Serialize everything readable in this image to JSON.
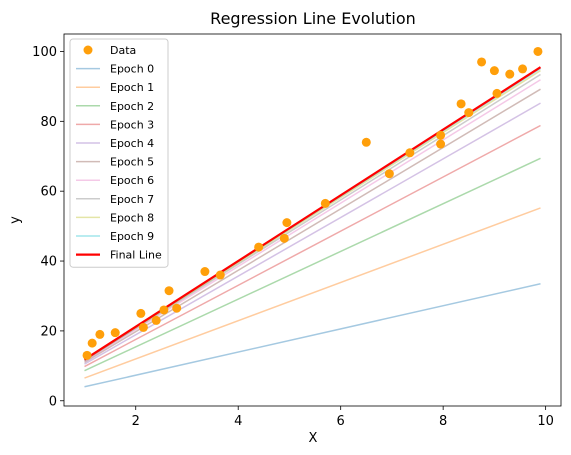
{
  "chart_data": {
    "type": "line",
    "title": "Regression Line Evolution",
    "xlabel": "X",
    "ylabel": "y",
    "xlim": [
      0.6,
      10.3
    ],
    "ylim": [
      -1.5,
      105
    ],
    "xticks": [
      2,
      4,
      6,
      8,
      10
    ],
    "yticks": [
      0,
      20,
      40,
      60,
      80,
      100
    ],
    "legend_location": "upper-left",
    "scatter": {
      "name": "Data",
      "color": "#ff9f0a",
      "x": [
        1.05,
        1.15,
        1.3,
        1.6,
        2.1,
        2.15,
        2.4,
        2.55,
        2.65,
        2.8,
        3.35,
        3.65,
        4.4,
        4.9,
        4.95,
        5.7,
        6.5,
        6.95,
        7.35,
        7.95,
        7.95,
        8.35,
        8.5,
        8.75,
        9.0,
        9.05,
        9.3,
        9.55,
        9.85
      ],
      "y": [
        13,
        16.5,
        19,
        19.5,
        25,
        21,
        23,
        26,
        31.5,
        26.5,
        37,
        36,
        44,
        46.5,
        51,
        56.5,
        74,
        65,
        71,
        76,
        73.5,
        85,
        82.5,
        97,
        94.5,
        88,
        93.5,
        95,
        100
      ]
    },
    "series": [
      {
        "name": "Epoch 0",
        "color": "#1f77b4",
        "x": [
          1.0,
          9.9
        ],
        "y": [
          4.0,
          33.5
        ]
      },
      {
        "name": "Epoch 1",
        "color": "#ff7f0e",
        "x": [
          1.0,
          9.9
        ],
        "y": [
          6.5,
          55.2
        ]
      },
      {
        "name": "Epoch 2",
        "color": "#2ca02c",
        "x": [
          1.0,
          9.9
        ],
        "y": [
          8.6,
          69.4
        ]
      },
      {
        "name": "Epoch 3",
        "color": "#d62728",
        "x": [
          1.0,
          9.9
        ],
        "y": [
          9.8,
          78.8
        ]
      },
      {
        "name": "Epoch 4",
        "color": "#9467bd",
        "x": [
          1.0,
          9.9
        ],
        "y": [
          10.5,
          85.2
        ]
      },
      {
        "name": "Epoch 5",
        "color": "#8c564b",
        "x": [
          1.0,
          9.9
        ],
        "y": [
          11.0,
          89.2
        ]
      },
      {
        "name": "Epoch 6",
        "color": "#e377c2",
        "x": [
          1.0,
          9.9
        ],
        "y": [
          11.3,
          91.9
        ]
      },
      {
        "name": "Epoch 7",
        "color": "#7f7f7f",
        "x": [
          1.0,
          9.9
        ],
        "y": [
          11.5,
          93.4
        ]
      },
      {
        "name": "Epoch 8",
        "color": "#bcbd22",
        "x": [
          1.0,
          9.9
        ],
        "y": [
          11.6,
          94.5
        ]
      },
      {
        "name": "Epoch 9",
        "color": "#17becf",
        "x": [
          1.0,
          9.9
        ],
        "y": [
          11.7,
          95.1
        ]
      },
      {
        "name": "Final Line",
        "color": "#ff0000",
        "x": [
          1.0,
          9.9
        ],
        "y": [
          11.8,
          95.5
        ]
      }
    ]
  }
}
